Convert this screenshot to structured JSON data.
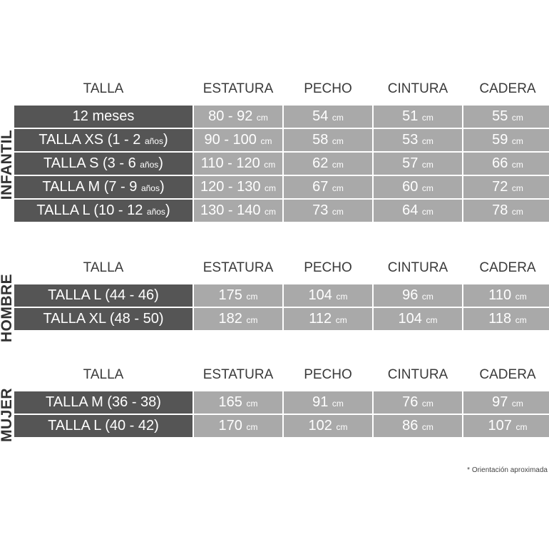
{
  "headers": [
    "TALLA",
    "ESTATURA",
    "PECHO",
    "CINTURA",
    "CADERA"
  ],
  "unit": "cm",
  "sections": [
    {
      "title": "INFANTIL",
      "rows": [
        {
          "label": {
            "main": "12 meses",
            "small": "",
            "end": ""
          },
          "values": [
            "80 - 92",
            "54",
            "51",
            "55"
          ]
        },
        {
          "label": {
            "main": "TALLA XS (1 - 2 ",
            "small": "años",
            "end": ")"
          },
          "values": [
            "90 - 100",
            "58",
            "53",
            "59"
          ]
        },
        {
          "label": {
            "main": "TALLA S (3 - 6 ",
            "small": "años",
            "end": ")"
          },
          "values": [
            "110 - 120",
            "62",
            "57",
            "66"
          ]
        },
        {
          "label": {
            "main": "TALLA M (7 - 9 ",
            "small": "años",
            "end": ")"
          },
          "values": [
            "120 - 130",
            "67",
            "60",
            "72"
          ]
        },
        {
          "label": {
            "main": "TALLA L (10 - 12 ",
            "small": "años",
            "end": ")"
          },
          "values": [
            "130 - 140",
            "73",
            "64",
            "78"
          ]
        }
      ]
    },
    {
      "title": "HOMBRE",
      "rows": [
        {
          "label": {
            "main": "TALLA L (44 - 46)",
            "small": "",
            "end": ""
          },
          "values": [
            "175",
            "104",
            "96",
            "110"
          ]
        },
        {
          "label": {
            "main": "TALLA XL (48 - 50)",
            "small": "",
            "end": ""
          },
          "values": [
            "182",
            "112",
            "104",
            "118"
          ]
        }
      ]
    },
    {
      "title": "MUJER",
      "rows": [
        {
          "label": {
            "main": "TALLA M (36 - 38)",
            "small": "",
            "end": ""
          },
          "values": [
            "165",
            "91",
            "76",
            "97"
          ]
        },
        {
          "label": {
            "main": "TALLA L (40 - 42)",
            "small": "",
            "end": ""
          },
          "values": [
            "170",
            "102",
            "86",
            "107"
          ]
        }
      ]
    }
  ],
  "footnote": "* Orientación aproximada"
}
